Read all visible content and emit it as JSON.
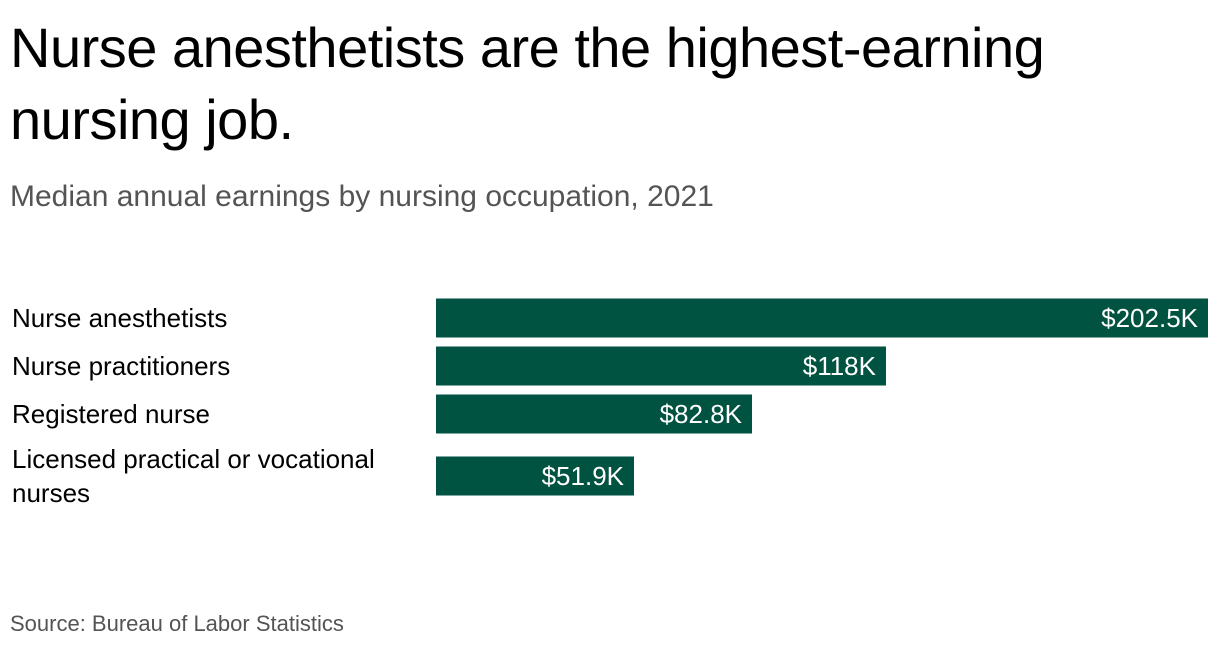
{
  "title": "Nurse anesthetists are the highest-earning nursing job.",
  "subtitle": "Median annual earnings by nursing occupation, 2021",
  "source": "Source: Bureau of Labor Statistics",
  "colors": {
    "bar": "#005241",
    "bar_text": "#ffffff",
    "subtitle": "#545454"
  },
  "chart_data": {
    "type": "bar",
    "orientation": "horizontal",
    "categories": [
      "Nurse anesthetists",
      "Nurse practitioners",
      "Registered nurse",
      "Licensed practical or vocational nurses"
    ],
    "values": [
      202500,
      118000,
      82800,
      51900
    ],
    "data_labels": [
      "$202.5K",
      "$118K",
      "$82.8K",
      "$51.9K"
    ],
    "xlim": [
      0,
      202500
    ],
    "grid": false,
    "legend": "none"
  }
}
